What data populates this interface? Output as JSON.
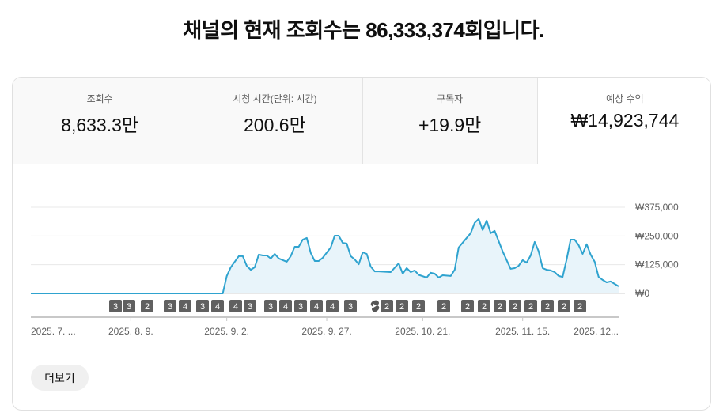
{
  "headline": "채널의 현재 조회수는 86,333,374회입니다.",
  "tabs": [
    {
      "label": "조회수",
      "value": "8,633.3만"
    },
    {
      "label": "시청 시간(단위: 시간)",
      "value": "200.6만"
    },
    {
      "label": "구독자",
      "value": "+19.9만"
    },
    {
      "label": "예상 수익",
      "value": "₩14,923,744",
      "active": true
    }
  ],
  "more_button": "더보기",
  "colors": {
    "line": "#2fa3cf",
    "fill": "#e8f4fa",
    "badge": "#606060"
  },
  "chart_data": {
    "type": "area",
    "x_range": [
      "2025-07-15",
      "2025-12-09"
    ],
    "ylim": [
      0,
      375000
    ],
    "y_ticks": [
      {
        "value": 0,
        "label": "₩0"
      },
      {
        "value": 125000,
        "label": "₩125,000"
      },
      {
        "value": 250000,
        "label": "₩250,000"
      },
      {
        "value": 375000,
        "label": "₩375,000"
      }
    ],
    "x_ticks": [
      {
        "date": "2025-07-15",
        "label": "2025. 7. ..."
      },
      {
        "date": "2025-08-09",
        "label": "2025. 8. 9."
      },
      {
        "date": "2025-09-02",
        "label": "2025. 9. 2."
      },
      {
        "date": "2025-09-27",
        "label": "2025. 9. 27."
      },
      {
        "date": "2025-10-21",
        "label": "2025. 10. 21."
      },
      {
        "date": "2025-11-15",
        "label": "2025. 11. 15."
      },
      {
        "date": "2025-12-09",
        "label": "2025. 12..."
      }
    ],
    "grid": true,
    "points": [
      [
        "2025-07-15",
        0
      ],
      [
        "2025-08-31",
        0
      ],
      [
        "2025-09-01",
        0
      ],
      [
        "2025-09-02",
        76000
      ],
      [
        "2025-09-03",
        114000
      ],
      [
        "2025-09-05",
        162000
      ],
      [
        "2025-09-06",
        162000
      ],
      [
        "2025-09-07",
        120000
      ],
      [
        "2025-09-08",
        103000
      ],
      [
        "2025-09-09",
        114000
      ],
      [
        "2025-09-10",
        169000
      ],
      [
        "2025-09-11",
        165000
      ],
      [
        "2025-09-12",
        165000
      ],
      [
        "2025-09-13",
        152000
      ],
      [
        "2025-09-14",
        172000
      ],
      [
        "2025-09-15",
        152000
      ],
      [
        "2025-09-17",
        138000
      ],
      [
        "2025-09-18",
        162000
      ],
      [
        "2025-09-19",
        203000
      ],
      [
        "2025-09-20",
        203000
      ],
      [
        "2025-09-21",
        234000
      ],
      [
        "2025-09-22",
        241000
      ],
      [
        "2025-09-23",
        176000
      ],
      [
        "2025-09-24",
        141000
      ],
      [
        "2025-09-25",
        141000
      ],
      [
        "2025-09-26",
        155000
      ],
      [
        "2025-09-28",
        200000
      ],
      [
        "2025-09-29",
        251000
      ],
      [
        "2025-09-30",
        251000
      ],
      [
        "2025-10-01",
        220000
      ],
      [
        "2025-10-02",
        217000
      ],
      [
        "2025-10-03",
        162000
      ],
      [
        "2025-10-04",
        148000
      ],
      [
        "2025-10-05",
        127000
      ],
      [
        "2025-10-06",
        179000
      ],
      [
        "2025-10-07",
        172000
      ],
      [
        "2025-10-08",
        117000
      ],
      [
        "2025-10-09",
        96000
      ],
      [
        "2025-10-10",
        96000
      ],
      [
        "2025-10-13",
        93000
      ],
      [
        "2025-10-15",
        131000
      ],
      [
        "2025-10-16",
        86000
      ],
      [
        "2025-10-17",
        110000
      ],
      [
        "2025-10-18",
        93000
      ],
      [
        "2025-10-19",
        100000
      ],
      [
        "2025-10-20",
        81000
      ],
      [
        "2025-10-22",
        69000
      ],
      [
        "2025-10-23",
        90000
      ],
      [
        "2025-10-24",
        86000
      ],
      [
        "2025-10-25",
        69000
      ],
      [
        "2025-10-26",
        79000
      ],
      [
        "2025-10-28",
        76000
      ],
      [
        "2025-10-29",
        103000
      ],
      [
        "2025-10-30",
        200000
      ],
      [
        "2025-11-02",
        262000
      ],
      [
        "2025-11-03",
        307000
      ],
      [
        "2025-11-04",
        324000
      ],
      [
        "2025-11-05",
        276000
      ],
      [
        "2025-11-06",
        317000
      ],
      [
        "2025-11-07",
        262000
      ],
      [
        "2025-11-08",
        272000
      ],
      [
        "2025-11-10",
        183000
      ],
      [
        "2025-11-12",
        107000
      ],
      [
        "2025-11-13",
        110000
      ],
      [
        "2025-11-14",
        120000
      ],
      [
        "2025-11-15",
        145000
      ],
      [
        "2025-11-16",
        134000
      ],
      [
        "2025-11-17",
        165000
      ],
      [
        "2025-11-18",
        224000
      ],
      [
        "2025-11-19",
        183000
      ],
      [
        "2025-11-20",
        110000
      ],
      [
        "2025-11-21",
        103000
      ],
      [
        "2025-11-22",
        100000
      ],
      [
        "2025-11-23",
        93000
      ],
      [
        "2025-11-24",
        76000
      ],
      [
        "2025-11-25",
        72000
      ],
      [
        "2025-11-26",
        148000
      ],
      [
        "2025-11-27",
        234000
      ],
      [
        "2025-11-28",
        234000
      ],
      [
        "2025-11-29",
        210000
      ],
      [
        "2025-11-30",
        172000
      ],
      [
        "2025-12-01",
        214000
      ],
      [
        "2025-12-02",
        169000
      ],
      [
        "2025-12-03",
        138000
      ],
      [
        "2025-12-04",
        72000
      ],
      [
        "2025-12-05",
        59000
      ],
      [
        "2025-12-06",
        48000
      ],
      [
        "2025-12-07",
        52000
      ],
      [
        "2025-12-09",
        31000
      ]
    ],
    "upload_badges": [
      "3",
      "3",
      "2",
      "3",
      "4",
      "3",
      "4",
      "4",
      "3",
      "3",
      "4",
      "3",
      "4",
      "4",
      "3",
      "shorts-icon",
      "2",
      "2",
      "2",
      "2",
      "2",
      "2",
      "2",
      "2",
      "2",
      "2",
      "2",
      "2"
    ]
  }
}
